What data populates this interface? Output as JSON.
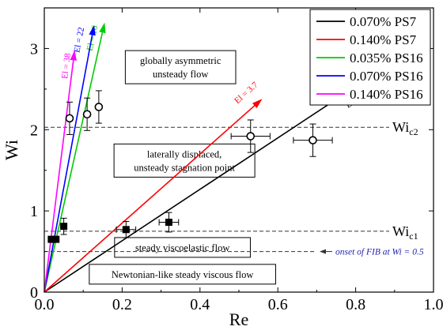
{
  "chart_data": {
    "type": "scatter",
    "xlabel": "Re",
    "ylabel": "Wi",
    "xlim": [
      0,
      1.0
    ],
    "ylim": [
      0,
      3.5
    ],
    "x_ticks": [
      0.0,
      0.2,
      0.4,
      0.6,
      0.8,
      1.0
    ],
    "x_tick_labels": [
      "0.0",
      "0.2",
      "0.4",
      "0.6",
      "0.8",
      "1.0"
    ],
    "y_ticks": [
      0,
      1,
      2,
      3
    ],
    "y_tick_labels": [
      "0",
      "1",
      "2",
      "3"
    ],
    "legend_position": "top-right",
    "series": [
      {
        "name": "0.070% PS7",
        "color": "#000000",
        "line_end": [
          0.85,
          2.69
        ],
        "el_label": "El = 2.7"
      },
      {
        "name": "0.140% PS7",
        "color": "#ff0000",
        "line_end": [
          0.56,
          2.38
        ],
        "el_label": "El = 3.7"
      },
      {
        "name": "0.035% PS16",
        "color": "#00cc00",
        "line_end": [
          0.155,
          3.32
        ],
        "el_label": "El = 16"
      },
      {
        "name": "0.070% PS16",
        "color": "#0000ff",
        "line_end": [
          0.128,
          3.29
        ],
        "el_label": "El = 22"
      },
      {
        "name": "0.140% PS16",
        "color": "#ff00ff",
        "line_end": [
          0.078,
          2.98
        ],
        "el_label": "El = 38"
      }
    ],
    "points_filled": [
      {
        "x": 0.018,
        "y": 0.65,
        "xerr": 0.0,
        "yerr": 0.0
      },
      {
        "x": 0.03,
        "y": 0.65,
        "xerr": 0.0,
        "yerr": 0.0
      },
      {
        "x": 0.05,
        "y": 0.81,
        "xerr": 0.0,
        "yerr": 0.1
      },
      {
        "x": 0.21,
        "y": 0.77,
        "xerr": 0.025,
        "yerr": 0.1
      },
      {
        "x": 0.32,
        "y": 0.86,
        "xerr": 0.025,
        "yerr": 0.12
      }
    ],
    "points_open": [
      {
        "x": 0.065,
        "y": 2.14,
        "xerr": 0.0,
        "yerr": 0.2
      },
      {
        "x": 0.11,
        "y": 2.19,
        "xerr": 0.0,
        "yerr": 0.2
      },
      {
        "x": 0.14,
        "y": 2.28,
        "xerr": 0.0,
        "yerr": 0.2
      },
      {
        "x": 0.53,
        "y": 1.92,
        "xerr": 0.05,
        "yerr": 0.2
      },
      {
        "x": 0.69,
        "y": 1.87,
        "xerr": 0.05,
        "yerr": 0.2
      }
    ],
    "reference_lines": [
      {
        "y": 2.03,
        "label": "Wi",
        "sub": "c2"
      },
      {
        "y": 0.75,
        "label": "Wi",
        "sub": "c1"
      },
      {
        "y": 0.5,
        "label": "onset of FIB at Wi = 0.5",
        "arrow": true
      }
    ],
    "regions": [
      {
        "x": 0.35,
        "y": 2.77,
        "lines": [
          "globally asymmetric",
          "unsteady flow"
        ]
      },
      {
        "x": 0.36,
        "y": 1.62,
        "lines": [
          "laterally displaced,",
          "unsteady stagnation point"
        ]
      },
      {
        "x": 0.355,
        "y": 0.55,
        "lines": [
          "steady viscoelastic flow"
        ]
      },
      {
        "x": 0.355,
        "y": 0.22,
        "lines": [
          "Newtonian-like steady viscous flow"
        ]
      }
    ]
  }
}
